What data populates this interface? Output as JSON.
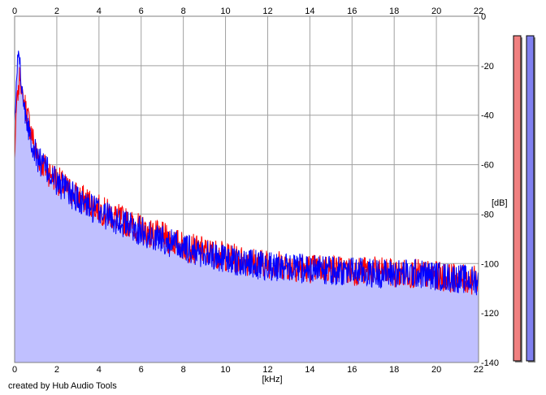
{
  "chart_data": {
    "type": "area",
    "xlabel": "[kHz]",
    "ylabel": "[dB]",
    "xlim": [
      0,
      22
    ],
    "ylim": [
      -140,
      0
    ],
    "x_ticks": [
      "0",
      "2",
      "4",
      "6",
      "8",
      "10",
      "12",
      "14",
      "16",
      "18",
      "20",
      "22"
    ],
    "y_ticks": [
      "0",
      "-20",
      "-40",
      "-60",
      "-80",
      "-100",
      "-120",
      "-140"
    ],
    "grid": true,
    "x_ticks_top_and_bottom": true,
    "y_ticks_side": "right",
    "series": [
      {
        "color": "#ff0000",
        "x": [
          0,
          0.1,
          0.2,
          0.25,
          0.3,
          0.4,
          0.6,
          0.8,
          1.0,
          1.5,
          2.0,
          2.5,
          3.0,
          3.5,
          4.0,
          4.5,
          5.0,
          5.5,
          6.0,
          6.5,
          7.0,
          7.5,
          8.0,
          9.0,
          10.0,
          11.0,
          12.0,
          13.0,
          14.0,
          15.0,
          16.0,
          17.0,
          18.0,
          19.0,
          20.0,
          21.0,
          22.0
        ],
        "values": [
          -58,
          -34,
          -30,
          -22,
          -28,
          -33,
          -40,
          -47,
          -55,
          -62,
          -66,
          -70,
          -73,
          -75,
          -78,
          -80,
          -82,
          -84,
          -86,
          -88,
          -89,
          -91,
          -93,
          -95,
          -97,
          -99,
          -100,
          -101,
          -102,
          -102,
          -103,
          -103,
          -104,
          -104,
          -105,
          -106,
          -107
        ]
      },
      {
        "color": "#0000ff",
        "x": [
          0,
          0.1,
          0.15,
          0.2,
          0.25,
          0.3,
          0.4,
          0.6,
          0.8,
          1.0,
          1.5,
          2.0,
          2.5,
          3.0,
          3.5,
          4.0,
          4.5,
          5.0,
          5.5,
          6.0,
          6.5,
          7.0,
          7.5,
          8.0,
          9.0,
          10.0,
          11.0,
          12.0,
          13.0,
          14.0,
          15.0,
          16.0,
          17.0,
          18.0,
          19.0,
          20.0,
          21.0,
          22.0
        ],
        "values": [
          -45,
          -25,
          -16,
          -14,
          -18,
          -25,
          -33,
          -42,
          -50,
          -56,
          -62,
          -67,
          -71,
          -74,
          -77,
          -79,
          -81,
          -83,
          -85,
          -87,
          -89,
          -90,
          -92,
          -94,
          -96,
          -98,
          -100,
          -101,
          -102,
          -102,
          -103,
          -103,
          -104,
          -104,
          -104,
          -105,
          -106,
          -107
        ]
      }
    ],
    "fill_color": "#c0c0ff",
    "level_meters": [
      {
        "color": "#f08080"
      },
      {
        "color": "#8080f0"
      }
    ]
  },
  "footer": {
    "credit": "created by Hub Audio Tools"
  }
}
